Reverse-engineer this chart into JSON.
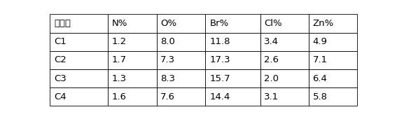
{
  "columns": [
    "却化剂",
    "N%",
    "O%",
    "Br%",
    "Cl%",
    "Zn%"
  ],
  "rows": [
    [
      "C1",
      "1.2",
      "8.0",
      "11.8",
      "3.4",
      "4.9"
    ],
    [
      "C2",
      "1.7",
      "7.3",
      "17.3",
      "2.6",
      "7.1"
    ],
    [
      "C3",
      "1.3",
      "8.3",
      "15.7",
      "2.0",
      "6.4"
    ],
    [
      "C4",
      "1.6",
      "7.6",
      "14.4",
      "3.1",
      "5.8"
    ]
  ],
  "background_color": "#ffffff",
  "border_color": "#000000",
  "text_color": "#000000",
  "font_size": 9.5,
  "fig_width": 5.67,
  "fig_height": 1.7,
  "dpi": 100,
  "cell_bg_dotted": "#f5f5ff",
  "outer_border_lw": 1.2,
  "inner_border_lw": 0.6
}
